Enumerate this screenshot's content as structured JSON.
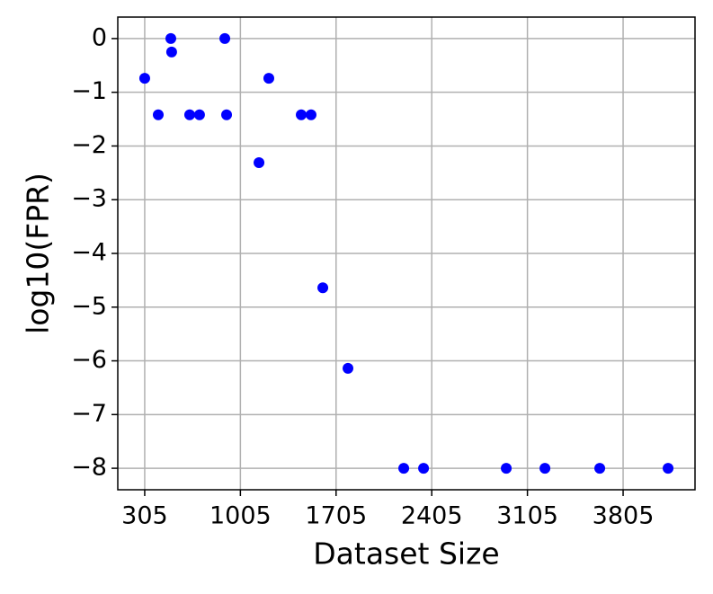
{
  "chart_data": {
    "type": "scatter",
    "x_label": "Dataset Size",
    "y_label": "log10(FPR)",
    "color": "#0000ff",
    "grid": true,
    "x": [
      305,
      404,
      496,
      502,
      634,
      706,
      891,
      904,
      1141,
      1213,
      1450,
      1522,
      1608,
      1792,
      2200,
      2345,
      2950,
      3233,
      3634,
      4134
    ],
    "values": [
      -0.74,
      -1.42,
      0,
      -0.25,
      -1.42,
      -1.42,
      0,
      -1.42,
      -2.31,
      -0.74,
      -1.42,
      -1.42,
      -4.64,
      -6.14,
      -8,
      -8,
      -8,
      -8,
      -8,
      -8
    ],
    "xlim": [
      108,
      4331
    ],
    "xticks": [
      305,
      1005,
      1705,
      2405,
      3105,
      3805
    ],
    "ylim": [
      -8.4,
      0.4
    ],
    "yticks": [
      0,
      {
        "value": -1,
        "label": "−1"
      },
      {
        "value": -2,
        "label": "−2"
      },
      {
        "value": -3,
        "label": "−3"
      },
      {
        "value": -4,
        "label": "−4"
      },
      {
        "value": -5,
        "label": "−5"
      },
      {
        "value": -6,
        "label": "−6"
      },
      {
        "value": -7,
        "label": "−7"
      },
      {
        "value": -8,
        "label": "−8"
      }
    ]
  }
}
